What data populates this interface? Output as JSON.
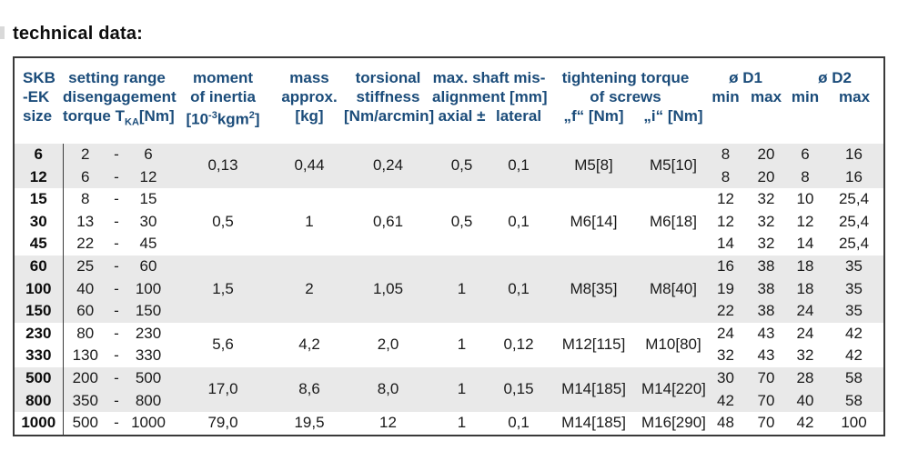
{
  "page": {
    "title": "technical data:"
  },
  "colors": {
    "header_text": "#1b4c7a",
    "stripe": "#e9e9e9",
    "border": "#3a3a3a",
    "body_text": "#1a1a1a",
    "background": "#ffffff"
  },
  "table": {
    "dash": "-",
    "header": {
      "size_line1": "SKB",
      "size_line2": "-EK",
      "size_line3": "size",
      "range_line1": "setting range",
      "range_line2": "disengagement",
      "range_line3_pre": "torque T",
      "range_line3_sub": "KA",
      "range_line3_post": "[Nm]",
      "inertia_line1": "moment",
      "inertia_line2": "of inertia",
      "inertia_unit_p1": "[10",
      "inertia_unit_sup1": "-3",
      "inertia_unit_p2": "kgm",
      "inertia_unit_sup2": "2",
      "inertia_unit_p3": "]",
      "mass_line1": "mass",
      "mass_line2": "approx.",
      "mass_line3": "[kg]",
      "stiffness_line1": "torsional",
      "stiffness_line2": "stiffness",
      "stiffness_line3": "[Nm/arcmin]",
      "misalign_line1": "max. shaft mis-",
      "misalign_line2": "alignment [mm]",
      "misalign_axial": "axial ±",
      "misalign_lateral": "lateral",
      "screws_line1": "tightening torque",
      "screws_line2": "of screws",
      "screws_f": "„f“ [Nm]",
      "screws_i": "„i“ [Nm]",
      "d1_title": "ø D1",
      "d2_title": "ø D2",
      "min_label": "min",
      "max_label": "max"
    },
    "groups": [
      {
        "striped": true,
        "shared": {
          "inertia": "0,13",
          "mass": "0,44",
          "stiffness": "0,24",
          "axial": "0,5",
          "lateral": "0,1",
          "screw_f": "M5[8]",
          "screw_i": "M5[10]"
        },
        "rows": [
          {
            "size": "6",
            "range_min": "2",
            "range_max": "6",
            "d1_min": "8",
            "d1_max": "20",
            "d2_min": "6",
            "d2_max": "16"
          },
          {
            "size": "12",
            "range_min": "6",
            "range_max": "12",
            "d1_min": "8",
            "d1_max": "20",
            "d2_min": "8",
            "d2_max": "16"
          }
        ]
      },
      {
        "striped": false,
        "shared": {
          "inertia": "0,5",
          "mass": "1",
          "stiffness": "0,61",
          "axial": "0,5",
          "lateral": "0,1",
          "screw_f": "M6[14]",
          "screw_i": "M6[18]"
        },
        "rows": [
          {
            "size": "15",
            "range_min": "8",
            "range_max": "15",
            "d1_min": "12",
            "d1_max": "32",
            "d2_min": "10",
            "d2_max": "25,4"
          },
          {
            "size": "30",
            "range_min": "13",
            "range_max": "30",
            "d1_min": "12",
            "d1_max": "32",
            "d2_min": "12",
            "d2_max": "25,4"
          },
          {
            "size": "45",
            "range_min": "22",
            "range_max": "45",
            "d1_min": "14",
            "d1_max": "32",
            "d2_min": "14",
            "d2_max": "25,4"
          }
        ]
      },
      {
        "striped": true,
        "shared": {
          "inertia": "1,5",
          "mass": "2",
          "stiffness": "1,05",
          "axial": "1",
          "lateral": "0,1",
          "screw_f": "M8[35]",
          "screw_i": "M8[40]"
        },
        "rows": [
          {
            "size": "60",
            "range_min": "25",
            "range_max": "60",
            "d1_min": "16",
            "d1_max": "38",
            "d2_min": "18",
            "d2_max": "35"
          },
          {
            "size": "100",
            "range_min": "40",
            "range_max": "100",
            "d1_min": "19",
            "d1_max": "38",
            "d2_min": "18",
            "d2_max": "35"
          },
          {
            "size": "150",
            "range_min": "60",
            "range_max": "150",
            "d1_min": "22",
            "d1_max": "38",
            "d2_min": "24",
            "d2_max": "35"
          }
        ]
      },
      {
        "striped": false,
        "shared": {
          "inertia": "5,6",
          "mass": "4,2",
          "stiffness": "2,0",
          "axial": "1",
          "lateral": "0,12",
          "screw_f": "M12[115]",
          "screw_i": "M10[80]"
        },
        "rows": [
          {
            "size": "230",
            "range_min": "80",
            "range_max": "230",
            "d1_min": "24",
            "d1_max": "43",
            "d2_min": "24",
            "d2_max": "42"
          },
          {
            "size": "330",
            "range_min": "130",
            "range_max": "330",
            "d1_min": "32",
            "d1_max": "43",
            "d2_min": "32",
            "d2_max": "42"
          }
        ]
      },
      {
        "striped": true,
        "shared": {
          "inertia": "17,0",
          "mass": "8,6",
          "stiffness": "8,0",
          "axial": "1",
          "lateral": "0,15",
          "screw_f": "M14[185]",
          "screw_i": "M14[220]"
        },
        "rows": [
          {
            "size": "500",
            "range_min": "200",
            "range_max": "500",
            "d1_min": "30",
            "d1_max": "70",
            "d2_min": "28",
            "d2_max": "58"
          },
          {
            "size": "800",
            "range_min": "350",
            "range_max": "800",
            "d1_min": "42",
            "d1_max": "70",
            "d2_min": "40",
            "d2_max": "58"
          }
        ]
      },
      {
        "striped": false,
        "shared": {
          "inertia": "79,0",
          "mass": "19,5",
          "stiffness": "12",
          "axial": "1",
          "lateral": "0,1",
          "screw_f": "M14[185]",
          "screw_i": "M16[290]"
        },
        "rows": [
          {
            "size": "1000",
            "range_min": "500",
            "range_max": "1000",
            "d1_min": "48",
            "d1_max": "70",
            "d2_min": "42",
            "d2_max": "100"
          }
        ]
      }
    ]
  }
}
